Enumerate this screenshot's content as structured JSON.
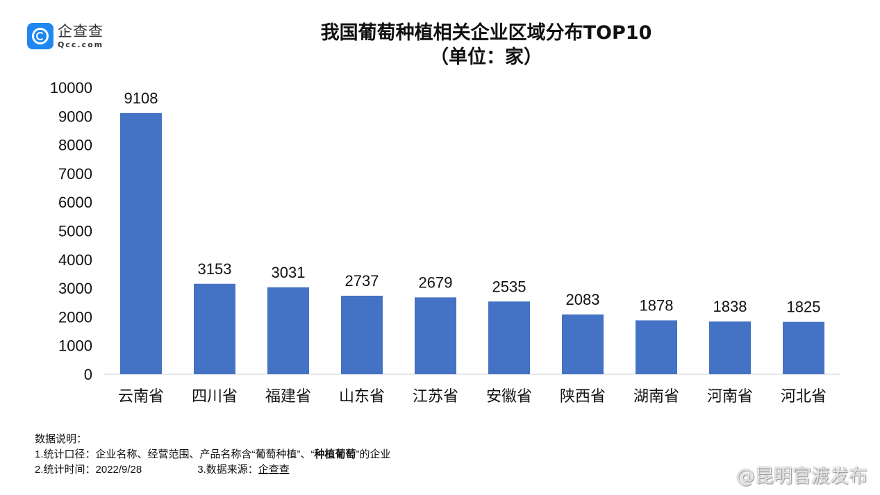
{
  "logo": {
    "name_cn": "企查查",
    "name_en": "Qcc.com"
  },
  "chart_data": {
    "type": "bar",
    "title": "我国葡萄种植相关企业区域分布TOP10",
    "subtitle": "（单位：家）",
    "categories": [
      "云南省",
      "四川省",
      "福建省",
      "山东省",
      "江苏省",
      "安徽省",
      "陕西省",
      "湖南省",
      "河南省",
      "河北省"
    ],
    "values": [
      9108,
      3153,
      3031,
      2737,
      2679,
      2535,
      2083,
      1878,
      1838,
      1825
    ],
    "ylim": [
      0,
      10000
    ],
    "yticks": [
      0,
      1000,
      2000,
      3000,
      4000,
      5000,
      6000,
      7000,
      8000,
      9000,
      10000
    ],
    "grid": false,
    "bar_color": "#4472c4"
  },
  "notes": {
    "heading": "数据说明：",
    "line1_prefix": "1.统计口径：企业名称、经营范围、产品名称含“葡萄种植”、“",
    "line1_bold": "种植葡萄",
    "line1_suffix": "”的企业",
    "line2": "2.统计时间：2022/9/28",
    "line3_label": "3.数据来源：",
    "line3_value": "企查查"
  },
  "watermark": "@昆明官渡发布"
}
